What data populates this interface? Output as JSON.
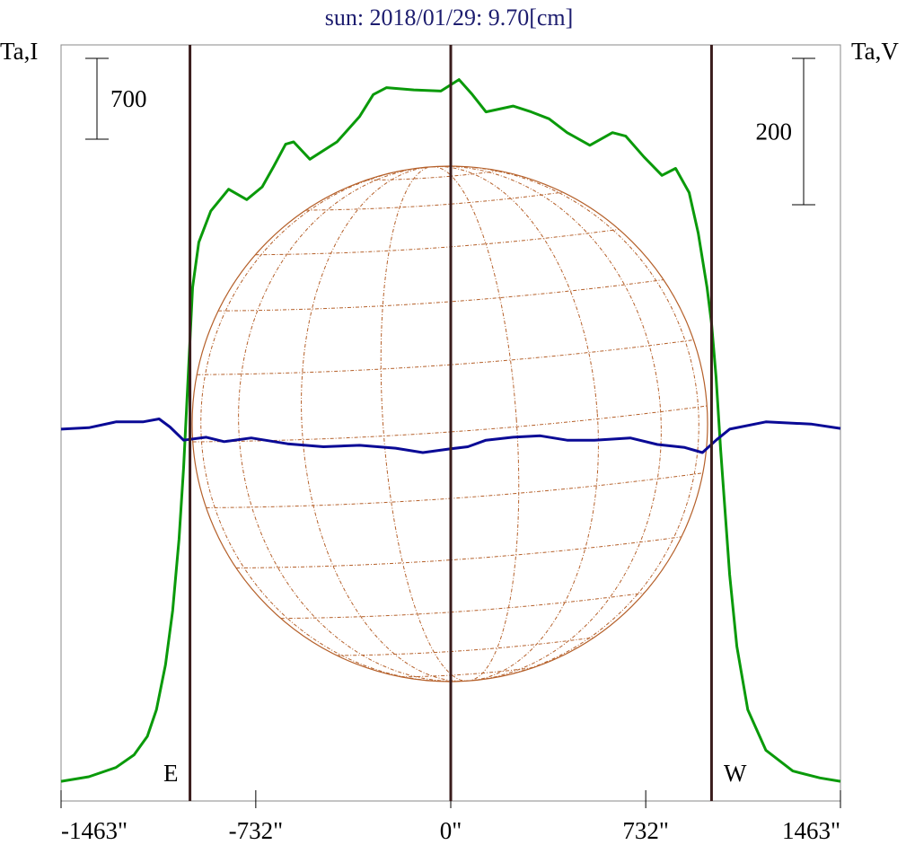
{
  "chart_data": {
    "type": "line",
    "title": "sun: 2018/01/29: 9.70[cm]",
    "y_label": "Ta,I",
    "y2_label": "Ta,V",
    "annotations": [
      "E",
      "W"
    ],
    "xlim": [
      -1463,
      1463
    ],
    "xticks": [
      {
        "value": -1463,
        "label": "-1463\""
      },
      {
        "value": -732,
        "label": "-732\""
      },
      {
        "value": 0,
        "label": "0\""
      },
      {
        "value": 732,
        "label": "732\""
      },
      {
        "value": 1463,
        "label": "1463\""
      }
    ],
    "ylim": [
      -170,
      6380
    ],
    "y2lim": [
      -509,
      524
    ],
    "vlines": [
      -979,
      0,
      979
    ],
    "scale_bars": [
      700,
      200
    ],
    "series": [
      {
        "name": "Ta,I",
        "color": "#0a9a0a",
        "x": [
          -1463,
          -1359,
          -1257,
          -1189,
          -1139,
          -1105,
          -1071,
          -1044,
          -1020,
          -1003,
          -986,
          -969,
          -946,
          -901,
          -834,
          -766,
          -708,
          -664,
          -620,
          -590,
          -529,
          -427,
          -342,
          -291,
          -241,
          -139,
          -37,
          31,
          81,
          132,
          234,
          302,
          369,
          437,
          522,
          607,
          657,
          725,
          793,
          844,
          895,
          929,
          962,
          979,
          996,
          1013,
          1030,
          1047,
          1074,
          1115,
          1183,
          1284,
          1386,
          1463
        ],
        "values": [
          0,
          40,
          120,
          230,
          390,
          620,
          1010,
          1480,
          2100,
          2720,
          3500,
          4280,
          4670,
          4940,
          5130,
          5040,
          5150,
          5330,
          5520,
          5540,
          5390,
          5540,
          5760,
          5950,
          6010,
          5990,
          5980,
          6080,
          5950,
          5800,
          5850,
          5800,
          5740,
          5620,
          5510,
          5620,
          5590,
          5410,
          5250,
          5310,
          5100,
          4750,
          4280,
          3970,
          3500,
          2880,
          2330,
          1790,
          1170,
          620,
          270,
          90,
          30,
          0
        ]
      },
      {
        "name": "Ta,V",
        "color": "#0a0a96",
        "axis": "y2",
        "x": [
          -1463,
          -1359,
          -1257,
          -1156,
          -1095,
          -1054,
          -1003,
          -918,
          -851,
          -749,
          -613,
          -478,
          -342,
          -207,
          -105,
          -3,
          64,
          132,
          234,
          336,
          437,
          539,
          674,
          776,
          878,
          945,
          996,
          1047,
          1183,
          1352,
          1463
        ],
        "values": [
          -1,
          1,
          9,
          9,
          13,
          2,
          -16,
          -12,
          -18,
          -13,
          -21,
          -25,
          -23,
          -27,
          -33,
          -28,
          -25,
          -16,
          -12,
          -10,
          -16,
          -16,
          -13,
          -22,
          -26,
          -33,
          -16,
          -1,
          9,
          6,
          0
        ]
      }
    ]
  }
}
